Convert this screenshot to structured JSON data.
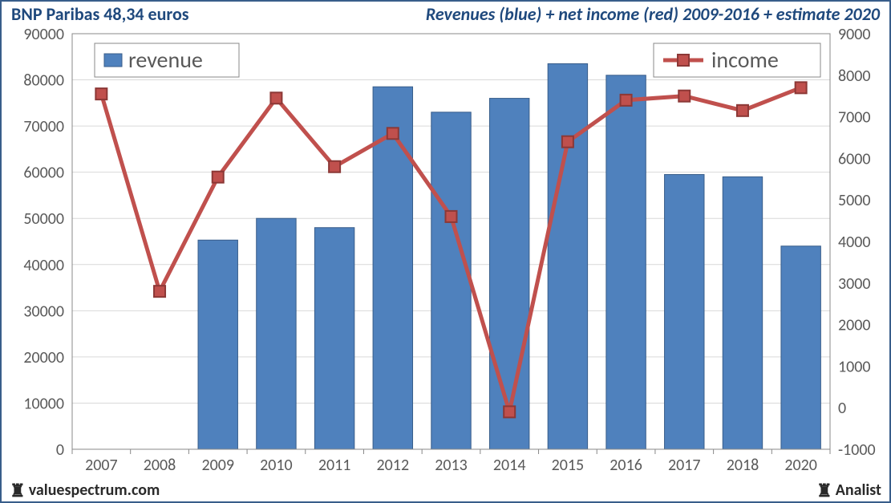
{
  "header": {
    "title_left": "BNP Paribas 48,34 euros",
    "title_right": "Revenues (blue) + net income (red) 2009-2016 + estimate 2020"
  },
  "footer": {
    "left_text": "valuespectrum.com",
    "right_text": "Analist"
  },
  "chart": {
    "type": "bar+line-dual-axis",
    "background_color": "#ffffff",
    "plot_border_color": "#888888",
    "grid_color": "#d9d9d9",
    "categories": [
      "2007",
      "2008",
      "2009",
      "2010",
      "2011",
      "2012",
      "2013",
      "2014",
      "2015",
      "2016",
      "2017",
      "2018",
      "2020"
    ],
    "bar_series": {
      "name": "revenue",
      "axis": "left",
      "values": [
        null,
        null,
        45300,
        50000,
        48000,
        78500,
        73000,
        76000,
        83500,
        81000,
        59500,
        59000,
        44000
      ],
      "fill_color": "#4f81bd",
      "border_color": "#385d8a",
      "bar_width_ratio": 0.68
    },
    "line_series": {
      "name": "income",
      "axis": "right",
      "values": [
        7550,
        2800,
        5550,
        7450,
        5800,
        6600,
        4600,
        -100,
        6400,
        7400,
        7500,
        7150,
        7700
      ],
      "line_color": "#c0504d",
      "marker_color": "#c0504d",
      "marker_border": "#8c3836",
      "marker_size": 14,
      "line_width": 5
    },
    "y_left": {
      "min": 0,
      "max": 90000,
      "step": 10000,
      "color": "#595959"
    },
    "y_right": {
      "min": -1000,
      "max": 9000,
      "step": 1000,
      "color": "#595959"
    },
    "label_fontsize": 20,
    "legend": {
      "border_color": "#888888",
      "bg_color": "#ffffff",
      "fontsize": 28
    }
  }
}
